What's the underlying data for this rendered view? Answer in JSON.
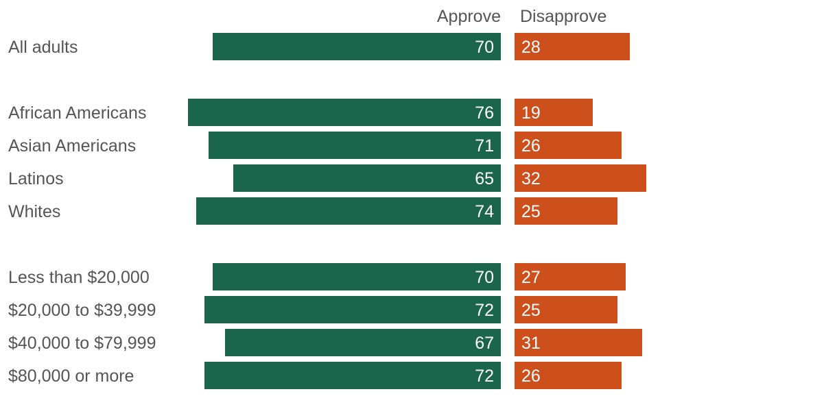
{
  "chart_data": {
    "type": "bar",
    "orientation": "horizontal-diverging",
    "series": [
      {
        "name": "Approve",
        "color": "#1b654c",
        "values": [
          70,
          76,
          71,
          65,
          74,
          70,
          72,
          67,
          72
        ]
      },
      {
        "name": "Disapprove",
        "color": "#cc4f1c",
        "values": [
          28,
          19,
          26,
          32,
          25,
          27,
          25,
          31,
          26
        ]
      }
    ],
    "categories": [
      "All adults",
      "African Americans",
      "Asian Americans",
      "Latinos",
      "Whites",
      "Less than $20,000",
      "$20,000 to $39,999",
      "$40,000 to $79,999",
      "$80,000 or more"
    ],
    "groups": [
      [
        0
      ],
      [
        1,
        2,
        3,
        4
      ],
      [
        5,
        6,
        7,
        8
      ]
    ],
    "legend": "column headers above bars"
  }
}
